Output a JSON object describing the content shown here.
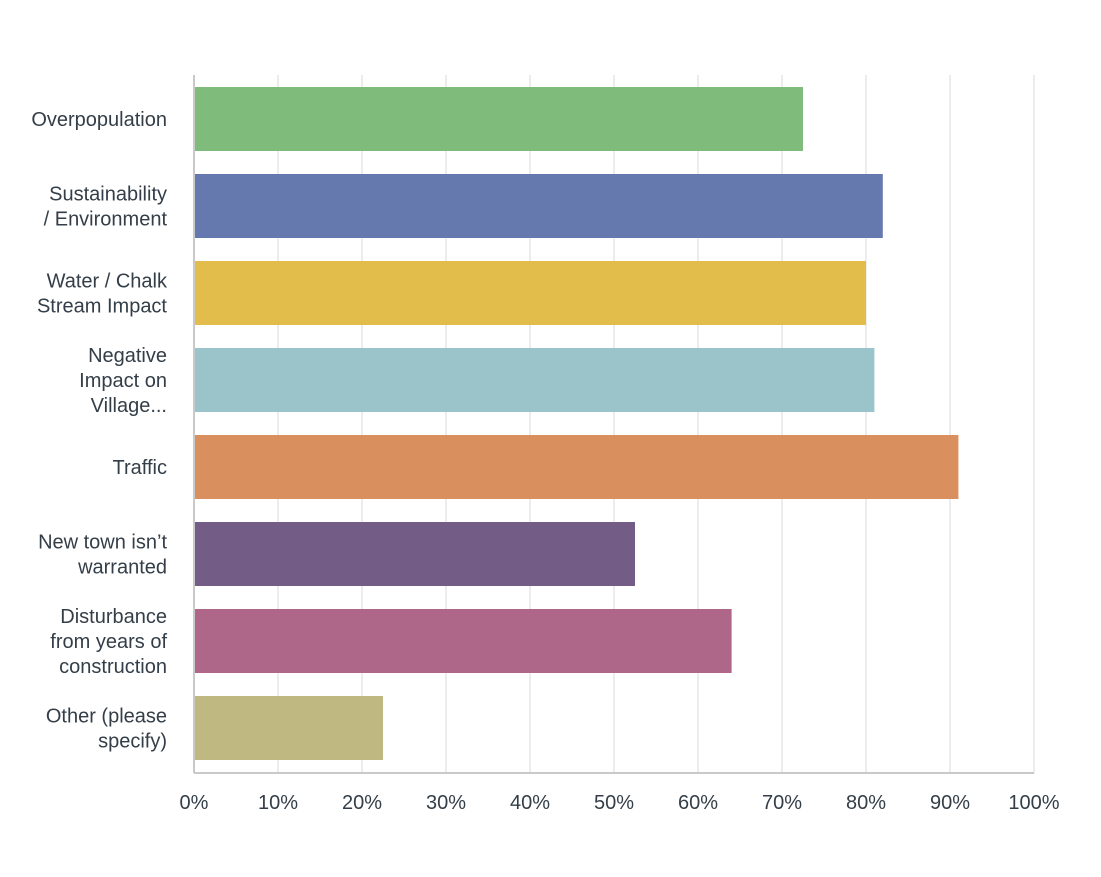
{
  "chart_data": {
    "type": "bar",
    "orientation": "horizontal",
    "categories": [
      [
        "Overpopulation"
      ],
      [
        "Sustainability",
        "/ Environment"
      ],
      [
        "Water / Chalk",
        "Stream Impact"
      ],
      [
        "Negative",
        "Impact on",
        "Village..."
      ],
      [
        "Traffic"
      ],
      [
        "New town isn’t",
        "warranted"
      ],
      [
        "Disturbance",
        "from years of",
        "construction"
      ],
      [
        "Other (please",
        "specify)"
      ]
    ],
    "values": [
      72.5,
      82,
      80,
      81,
      91,
      52.5,
      64,
      22.5
    ],
    "colors": [
      "#7fbb7a",
      "#6579ae",
      "#e3bd4c",
      "#9ac4c9",
      "#d98f5e",
      "#735c86",
      "#ae6689",
      "#c0b881"
    ],
    "xlim": [
      0,
      100
    ],
    "x_ticks": [
      "0%",
      "10%",
      "20%",
      "30%",
      "40%",
      "50%",
      "60%",
      "70%",
      "80%",
      "90%",
      "100%"
    ],
    "title": "",
    "xlabel": "",
    "ylabel": "",
    "grid": true,
    "legend": "none",
    "axis_color": "#c9c9c9",
    "grid_color": "#e6e6e6",
    "text_color": "#333e48"
  }
}
